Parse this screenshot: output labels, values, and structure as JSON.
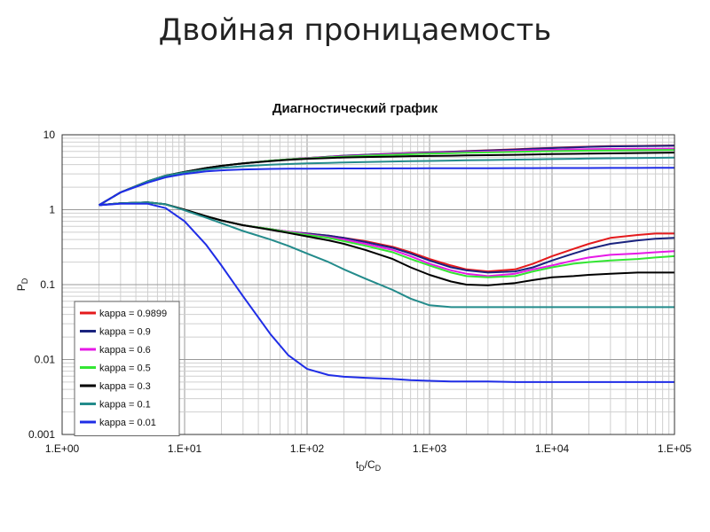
{
  "page": {
    "title": "Двойная проницаемость"
  },
  "chart_data": {
    "type": "line",
    "title": "Диагностический график",
    "xscale": "log",
    "yscale": "log",
    "xlim": [
      1,
      100000
    ],
    "ylim": [
      0.001,
      10
    ],
    "x_ticks": [
      "1.E+00",
      "1.E+01",
      "1.E+02",
      "1.E+03",
      "1.E+04",
      "1.E+05"
    ],
    "y_ticks": [
      "0.001",
      "0.01",
      "0.1",
      "1",
      "10"
    ],
    "xlabel": {
      "main": "t",
      "sub1": "D",
      "sep": "/C",
      "sub2": "D"
    },
    "ylabel": {
      "main": "P",
      "sub": "D"
    },
    "grid": true,
    "legend_position": "bottom-left",
    "x": [
      2,
      3,
      5,
      7,
      10,
      15,
      20,
      30,
      50,
      70,
      100,
      150,
      200,
      300,
      500,
      700,
      1000,
      1500,
      2000,
      3000,
      5000,
      7000,
      10000,
      15000,
      20000,
      30000,
      50000,
      70000,
      100000
    ],
    "series": [
      {
        "name": "kappa = 0.9899",
        "color": "#e41a1c",
        "derivative": [
          1.15,
          1.22,
          1.25,
          1.18,
          1.0,
          0.82,
          0.72,
          0.62,
          0.55,
          0.51,
          0.48,
          0.45,
          0.42,
          0.38,
          0.32,
          0.27,
          0.22,
          0.18,
          0.16,
          0.15,
          0.16,
          0.19,
          0.24,
          0.3,
          0.35,
          0.42,
          0.46,
          0.48,
          0.48
        ],
        "pressure": [
          1.15,
          1.7,
          2.4,
          2.85,
          3.2,
          3.6,
          3.85,
          4.15,
          4.5,
          4.7,
          4.9,
          5.1,
          5.25,
          5.4,
          5.6,
          5.7,
          5.82,
          5.95,
          6.05,
          6.2,
          6.4,
          6.55,
          6.7,
          6.85,
          6.95,
          7.05,
          7.1,
          7.15,
          7.2
        ]
      },
      {
        "name": "kappa = 0.9",
        "color": "#1a237e",
        "derivative": [
          1.15,
          1.22,
          1.25,
          1.18,
          1.0,
          0.82,
          0.72,
          0.62,
          0.55,
          0.51,
          0.48,
          0.45,
          0.42,
          0.37,
          0.31,
          0.26,
          0.21,
          0.17,
          0.155,
          0.145,
          0.15,
          0.17,
          0.21,
          0.26,
          0.3,
          0.35,
          0.39,
          0.41,
          0.42
        ],
        "pressure": [
          1.15,
          1.7,
          2.4,
          2.85,
          3.2,
          3.6,
          3.85,
          4.15,
          4.5,
          4.7,
          4.9,
          5.1,
          5.25,
          5.4,
          5.58,
          5.68,
          5.8,
          5.92,
          6.02,
          6.15,
          6.35,
          6.5,
          6.65,
          6.8,
          6.9,
          7.0,
          7.05,
          7.1,
          7.15
        ]
      },
      {
        "name": "kappa = 0.6",
        "color": "#e619e6",
        "derivative": [
          1.15,
          1.22,
          1.25,
          1.18,
          1.0,
          0.82,
          0.72,
          0.62,
          0.55,
          0.51,
          0.47,
          0.43,
          0.4,
          0.35,
          0.29,
          0.24,
          0.19,
          0.155,
          0.14,
          0.13,
          0.14,
          0.16,
          0.18,
          0.21,
          0.23,
          0.25,
          0.26,
          0.27,
          0.28
        ],
        "pressure": [
          1.15,
          1.7,
          2.4,
          2.85,
          3.2,
          3.6,
          3.85,
          4.15,
          4.5,
          4.7,
          4.88,
          5.05,
          5.18,
          5.32,
          5.5,
          5.6,
          5.7,
          5.8,
          5.88,
          5.98,
          6.12,
          6.22,
          6.3,
          6.38,
          6.42,
          6.46,
          6.5,
          6.52,
          6.54
        ]
      },
      {
        "name": "kappa = 0.5",
        "color": "#33e633",
        "derivative": [
          1.15,
          1.22,
          1.25,
          1.18,
          1.0,
          0.82,
          0.72,
          0.62,
          0.55,
          0.5,
          0.46,
          0.42,
          0.38,
          0.33,
          0.27,
          0.22,
          0.18,
          0.145,
          0.13,
          0.125,
          0.13,
          0.15,
          0.17,
          0.19,
          0.2,
          0.21,
          0.22,
          0.23,
          0.24
        ],
        "pressure": [
          1.15,
          1.7,
          2.4,
          2.85,
          3.2,
          3.6,
          3.85,
          4.15,
          4.5,
          4.7,
          4.85,
          5.0,
          5.12,
          5.25,
          5.4,
          5.5,
          5.6,
          5.68,
          5.75,
          5.82,
          5.92,
          5.98,
          6.04,
          6.1,
          6.14,
          6.18,
          6.22,
          6.25,
          6.28
        ]
      },
      {
        "name": "kappa = 0.3",
        "color": "#000000",
        "derivative": [
          1.15,
          1.22,
          1.25,
          1.18,
          1.0,
          0.82,
          0.72,
          0.62,
          0.54,
          0.49,
          0.44,
          0.39,
          0.35,
          0.29,
          0.22,
          0.17,
          0.135,
          0.11,
          0.1,
          0.098,
          0.105,
          0.115,
          0.125,
          0.13,
          0.135,
          0.14,
          0.145,
          0.145,
          0.145
        ],
        "pressure": [
          1.15,
          1.7,
          2.4,
          2.85,
          3.2,
          3.6,
          3.85,
          4.15,
          4.45,
          4.62,
          4.78,
          4.9,
          4.98,
          5.05,
          5.12,
          5.18,
          5.22,
          5.26,
          5.3,
          5.34,
          5.4,
          5.46,
          5.52,
          5.56,
          5.6,
          5.64,
          5.7,
          5.74,
          5.78
        ]
      },
      {
        "name": "kappa = 0.1",
        "color": "#238b8b",
        "derivative": [
          1.15,
          1.22,
          1.25,
          1.18,
          0.98,
          0.78,
          0.66,
          0.52,
          0.4,
          0.33,
          0.26,
          0.2,
          0.16,
          0.12,
          0.085,
          0.065,
          0.053,
          0.05,
          0.05,
          0.05,
          0.05,
          0.05,
          0.05,
          0.05,
          0.05,
          0.05,
          0.05,
          0.05,
          0.05
        ],
        "pressure": [
          1.15,
          1.7,
          2.4,
          2.85,
          3.15,
          3.45,
          3.62,
          3.8,
          3.98,
          4.07,
          4.15,
          4.22,
          4.27,
          4.33,
          4.4,
          4.44,
          4.48,
          4.52,
          4.56,
          4.6,
          4.66,
          4.7,
          4.74,
          4.78,
          4.82,
          4.86,
          4.9,
          4.93,
          4.96
        ]
      },
      {
        "name": "kappa = 0.01",
        "color": "#1f2de6",
        "derivative": [
          1.15,
          1.2,
          1.2,
          1.05,
          0.7,
          0.34,
          0.18,
          0.07,
          0.022,
          0.0115,
          0.0075,
          0.0062,
          0.0059,
          0.0057,
          0.0055,
          0.0053,
          0.0052,
          0.0051,
          0.0051,
          0.0051,
          0.005,
          0.005,
          0.005,
          0.005,
          0.005,
          0.005,
          0.005,
          0.005,
          0.005
        ],
        "pressure": [
          1.15,
          1.7,
          2.3,
          2.7,
          3.0,
          3.25,
          3.35,
          3.45,
          3.5,
          3.52,
          3.53,
          3.54,
          3.55,
          3.55,
          3.56,
          3.56,
          3.57,
          3.57,
          3.58,
          3.58,
          3.59,
          3.59,
          3.6,
          3.6,
          3.6,
          3.61,
          3.61,
          3.62,
          3.62
        ]
      }
    ]
  }
}
